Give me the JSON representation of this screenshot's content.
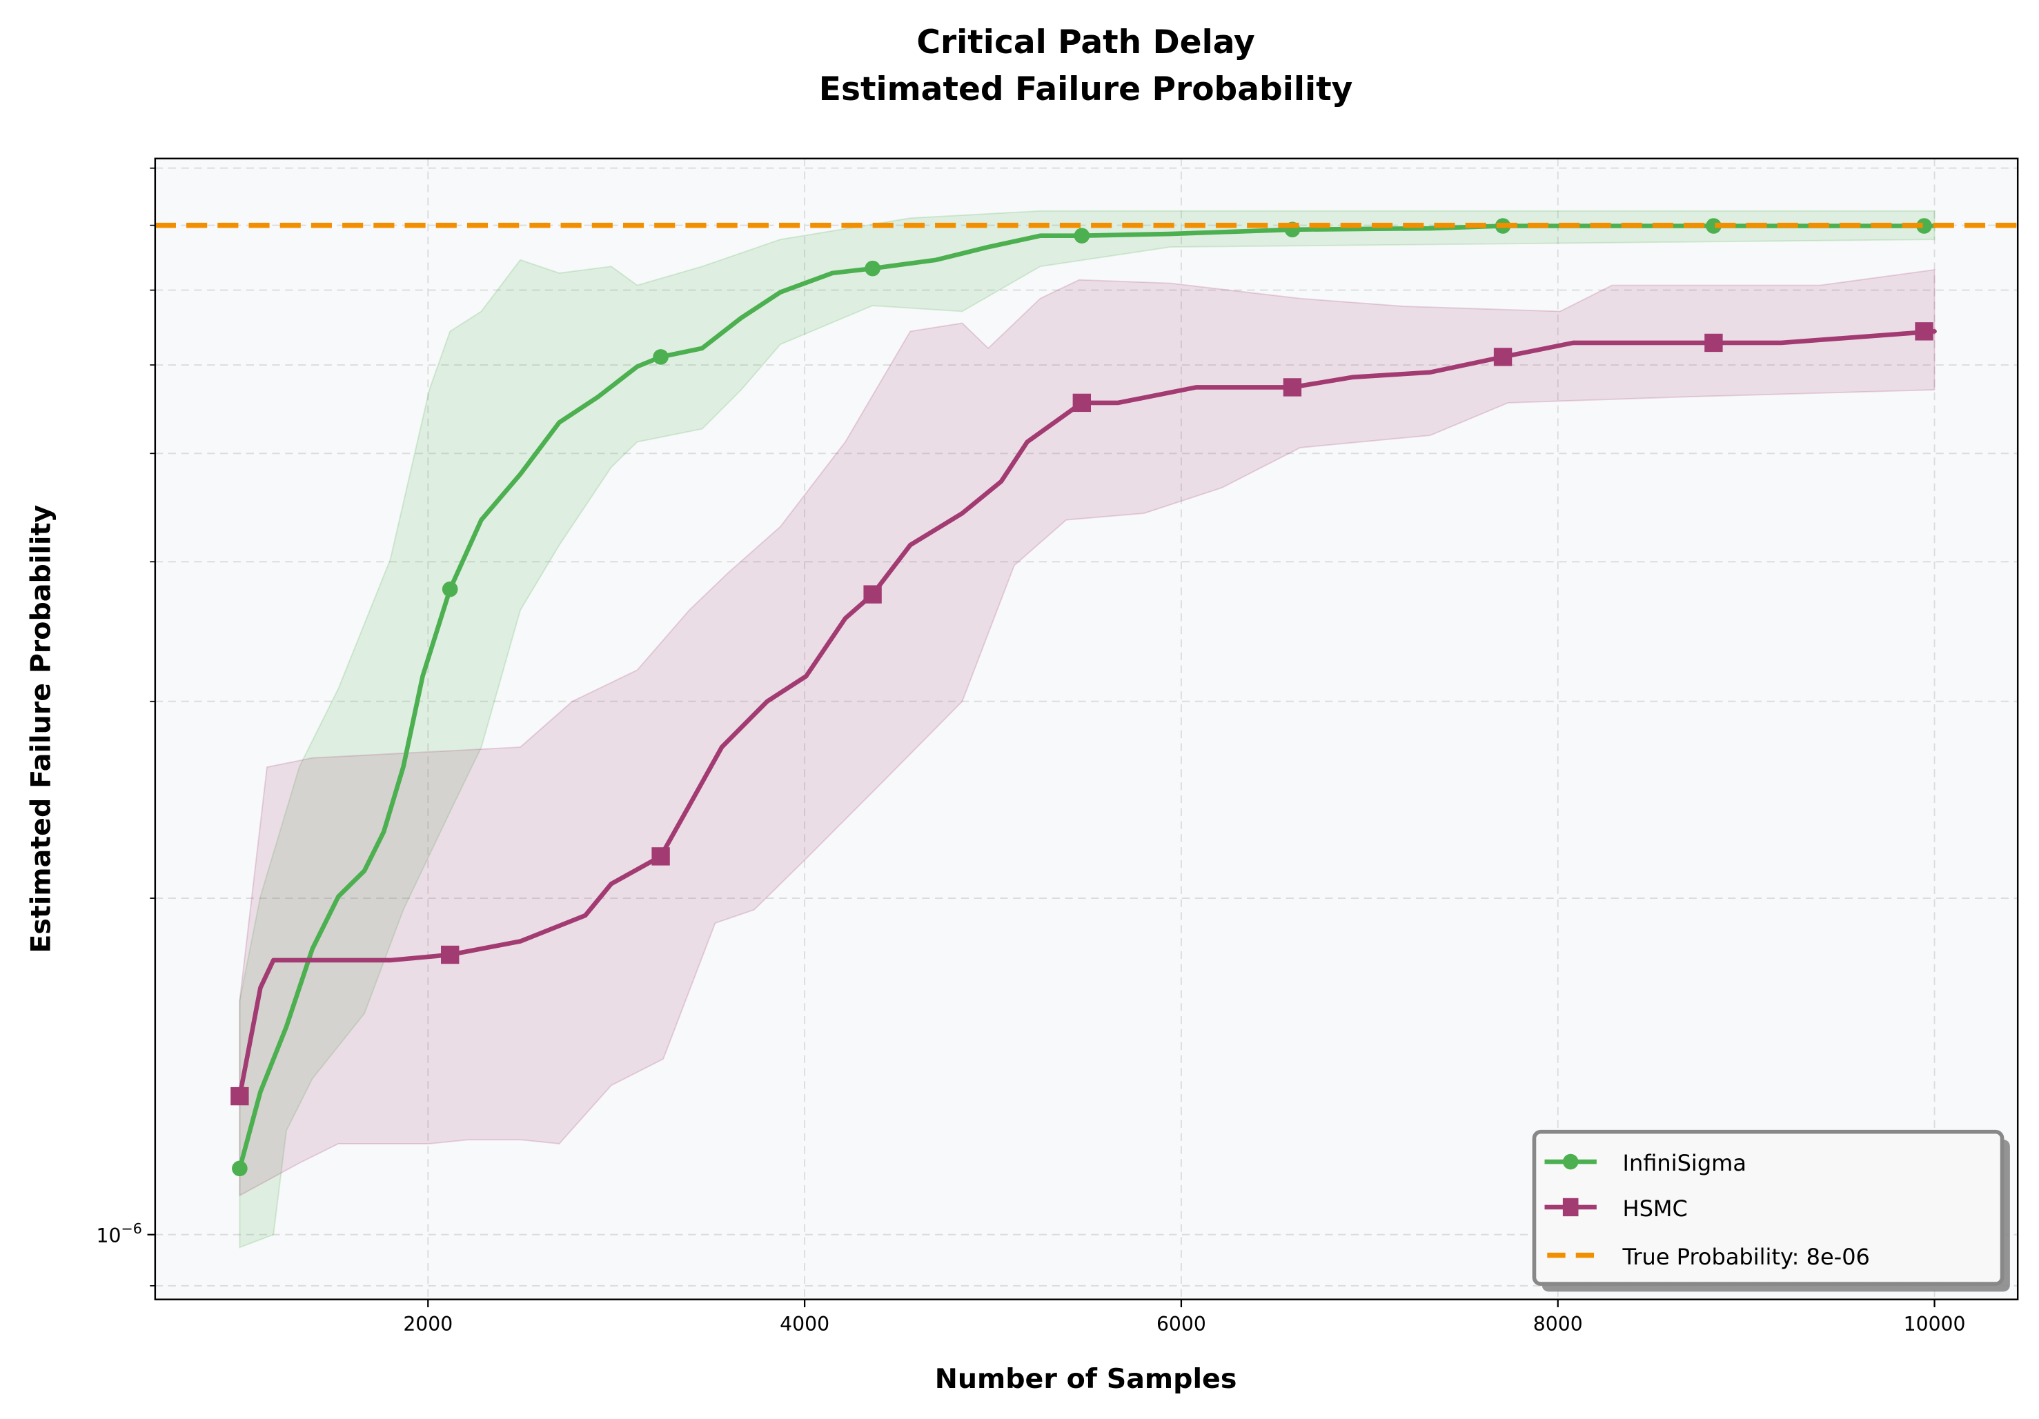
{
  "chart_data": {
    "type": "line",
    "title": "Critical Path Delay\nEstimated Failure Probability",
    "title_lines": [
      "Critical Path Delay",
      "Estimated Failure Probability"
    ],
    "xlabel": "Number of Samples",
    "ylabel": "Estimated Failure Probability",
    "xlim": [
      551,
      10442
    ],
    "ylim": [
      8.75e-07,
      9.18e-06
    ],
    "yscale": "log",
    "grid": true,
    "legend_position": "bottom-right",
    "x_ticks": [
      2000,
      4000,
      6000,
      8000,
      10000
    ],
    "x_tick_labels": [
      "2000",
      "4000",
      "6000",
      "8000",
      "10000"
    ],
    "y_major_ticks": [
      1e-06
    ],
    "y_major_tick_labels": [
      "10",
      "−6"
    ],
    "y_minor_ticks": [
      9e-07,
      2e-06,
      3e-06,
      4e-06,
      5e-06,
      6e-06,
      7e-06,
      8e-06,
      9e-06
    ],
    "reference_line": {
      "name": "True Probability: 8e-06",
      "value": 8e-06,
      "color": "#F18F01",
      "style": "dashed"
    },
    "series": [
      {
        "name": "InfiniSigma",
        "color": "#4CAF50",
        "marker": "circle",
        "x": [
          1000,
          1110,
          1248,
          1386,
          1524,
          1662,
          1765,
          1869,
          1972,
          2117,
          2283,
          2490,
          2697,
          2904,
          3111,
          3236,
          3456,
          3663,
          3871,
          4147,
          4361,
          4699,
          4975,
          5251,
          5472,
          5941,
          6590,
          7322,
          7708,
          8827,
          9945,
          10000
        ],
        "y": [
          1.146e-06,
          1.342e-06,
          1.535e-06,
          1.802e-06,
          2.007e-06,
          2.116e-06,
          2.293e-06,
          2.622e-06,
          3.162e-06,
          3.78e-06,
          4.36e-06,
          4.79e-06,
          5.33e-06,
          5.62e-06,
          5.98e-06,
          6.1e-06,
          6.21e-06,
          6.61e-06,
          6.97e-06,
          7.25e-06,
          7.32e-06,
          7.45e-06,
          7.65e-06,
          7.83e-06,
          7.83e-06,
          7.86e-06,
          7.93e-06,
          7.95e-06,
          7.99e-06,
          7.99e-06,
          7.99e-06,
          7.99e-06
        ],
        "marker_x": [
          1000,
          2117,
          3236,
          4361,
          5472,
          6590,
          7708,
          8827,
          9945
        ],
        "marker_y": [
          1.146e-06,
          3.78e-06,
          6.1e-06,
          7.32e-06,
          7.83e-06,
          7.93e-06,
          7.99e-06,
          7.99e-06,
          7.99e-06
        ],
        "band_upper": {
          "x": [
            1000,
            1110,
            1317,
            1524,
            1800,
            2007,
            2117,
            2283,
            2490,
            2697,
            2973,
            3111,
            3456,
            3871,
            4561,
            5251,
            10000
          ],
          "y": [
            1.619e-06,
            2.007e-06,
            2.622e-06,
            3.08e-06,
            4.02e-06,
            5.7e-06,
            6.43e-06,
            6.7e-06,
            7.45e-06,
            7.25e-06,
            7.35e-06,
            7.07e-06,
            7.35e-06,
            7.77e-06,
            8.12e-06,
            8.24e-06,
            8.24e-06
          ]
        },
        "band_lower": {
          "x": [
            1000,
            1179,
            1248,
            1386,
            1662,
            1869,
            2117,
            2283,
            2490,
            2697,
            2973,
            3111,
            3456,
            3663,
            3871,
            4361,
            4837,
            5251,
            5941,
            10000
          ],
          "y": [
            9.74e-07,
            1e-06,
            1.239e-06,
            1.379e-06,
            1.577e-06,
            1.953e-06,
            2.39e-06,
            2.73e-06,
            3.62e-06,
            4.14e-06,
            4.86e-06,
            5.12e-06,
            5.26e-06,
            5.7e-06,
            6.26e-06,
            6.78e-06,
            6.7e-06,
            7.35e-06,
            7.65e-06,
            7.77e-06
          ]
        }
      },
      {
        "name": "HSMC",
        "color": "#A23B72",
        "marker": "square",
        "x": [
          1000,
          1110,
          1179,
          1800,
          2117,
          2490,
          2835,
          2973,
          3236,
          3387,
          3560,
          3801,
          4008,
          4216,
          4361,
          4561,
          4837,
          5044,
          5182,
          5472,
          5665,
          6079,
          6590,
          6908,
          7322,
          7708,
          8081,
          8827,
          9186,
          10000
        ],
        "y": [
          1.33e-06,
          1.663e-06,
          1.76e-06,
          1.76e-06,
          1.78e-06,
          1.83e-06,
          1.93e-06,
          2.06e-06,
          2.18e-06,
          2.42e-06,
          2.73e-06,
          3e-06,
          3.16e-06,
          3.56e-06,
          3.74e-06,
          4.14e-06,
          4.42e-06,
          4.72e-06,
          5.12e-06,
          5.55e-06,
          5.55e-06,
          5.73e-06,
          5.73e-06,
          5.85e-06,
          5.91e-06,
          6.1e-06,
          6.28e-06,
          6.28e-06,
          6.28e-06,
          6.43e-06
        ],
        "marker_x": [
          1000,
          2117,
          3236,
          4361,
          5472,
          6590,
          7708,
          8827,
          9945
        ],
        "marker_y": [
          1.33e-06,
          1.78e-06,
          2.18e-06,
          3.74e-06,
          5.55e-06,
          5.73e-06,
          6.1e-06,
          6.28e-06,
          6.43e-06
        ],
        "band_upper": {
          "x": [
            1000,
            1145,
            1386,
            2490,
            2766,
            3111,
            3387,
            3594,
            3871,
            4216,
            4561,
            4837,
            4975,
            5251,
            5458,
            5941,
            6632,
            7184,
            8012,
            8288,
            9393,
            10000
          ],
          "y": [
            1.62e-06,
            2.62e-06,
            2.67e-06,
            2.73e-06,
            3e-06,
            3.2e-06,
            3.62e-06,
            3.91e-06,
            4.3e-06,
            5.12e-06,
            6.43e-06,
            6.54e-06,
            6.21e-06,
            6.88e-06,
            7.15e-06,
            7.1e-06,
            6.88e-06,
            6.77e-06,
            6.7e-06,
            7.07e-06,
            7.07e-06,
            7.3e-06
          ]
        },
        "band_lower": {
          "x": [
            1000,
            1317,
            1524,
            2007,
            2214,
            2490,
            2697,
            2973,
            3249,
            3525,
            3732,
            4008,
            4423,
            4837,
            5113,
            5389,
            5803,
            6217,
            6632,
            7322,
            7736,
            8702,
            10000
          ],
          "y": [
            1.084e-06,
            1.159e-06,
            1.206e-06,
            1.206e-06,
            1.216e-06,
            1.216e-06,
            1.206e-06,
            1.36e-06,
            1.436e-06,
            1.9e-06,
            1.953e-06,
            2.17e-06,
            2.55e-06,
            3e-06,
            3.97e-06,
            4.36e-06,
            4.42e-06,
            4.66e-06,
            5.06e-06,
            5.19e-06,
            5.55e-06,
            5.62e-06,
            5.7e-06
          ]
        }
      }
    ]
  }
}
